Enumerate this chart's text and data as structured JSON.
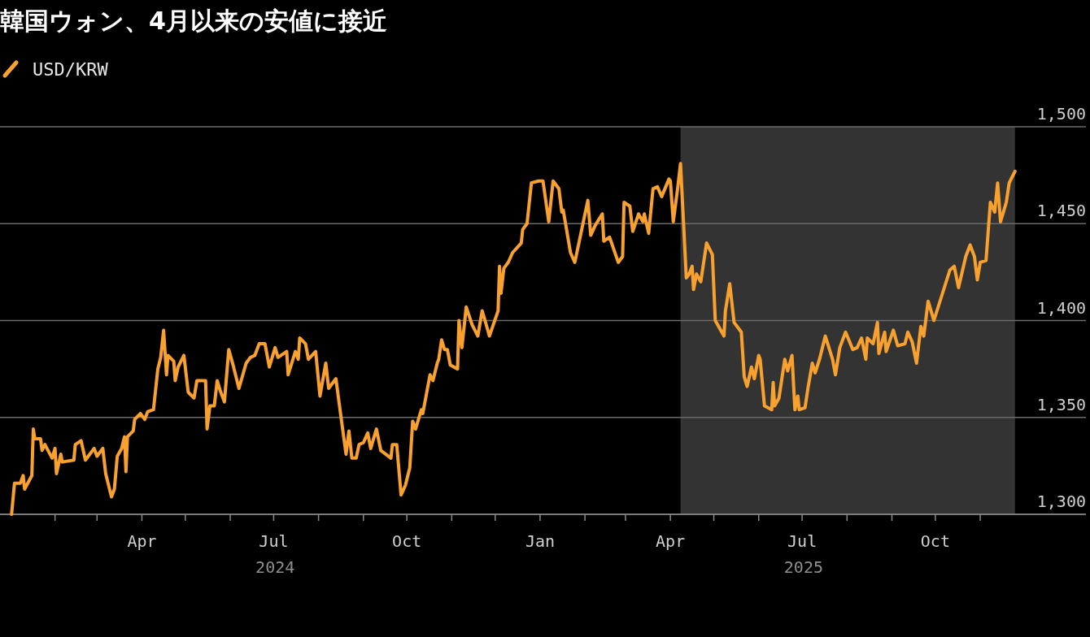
{
  "chart_data": {
    "type": "line",
    "title": "韓国ウォン、4月以来の安値に接近",
    "legend": "top left",
    "grid": "y",
    "line_style": "solid",
    "marker": "none",
    "xlim": [
      "2023-12-25",
      "2026-01-13"
    ],
    "xticks": [
      {
        "value": "2024-02-01",
        "label": null
      },
      {
        "value": "2024-03-01",
        "label": null
      },
      {
        "value": "2024-04-01",
        "label": "Apr"
      },
      {
        "value": "2024-05-01",
        "label": null
      },
      {
        "value": "2024-06-01",
        "label": null
      },
      {
        "value": "2024-07-01",
        "label": "Jul"
      },
      {
        "value": "2024-08-01",
        "label": null
      },
      {
        "value": "2024-09-01",
        "label": null
      },
      {
        "value": "2024-10-01",
        "label": "Oct"
      },
      {
        "value": "2024-11-01",
        "label": null
      },
      {
        "value": "2024-12-01",
        "label": null
      },
      {
        "value": "2025-01-01",
        "label": "Jan"
      },
      {
        "value": "2025-02-01",
        "label": null
      },
      {
        "value": "2025-03-01",
        "label": null
      },
      {
        "value": "2025-04-01",
        "label": "Apr"
      },
      {
        "value": "2025-05-01",
        "label": null
      },
      {
        "value": "2025-06-01",
        "label": null
      },
      {
        "value": "2025-07-01",
        "label": "Jul"
      },
      {
        "value": "2025-08-01",
        "label": null
      },
      {
        "value": "2025-09-01",
        "label": null
      },
      {
        "value": "2025-10-01",
        "label": "Oct"
      },
      {
        "value": "2025-11-01",
        "label": null
      }
    ],
    "ylim": [
      1300,
      1500
    ],
    "yticks": [
      {
        "value": 1300,
        "label": "1,300"
      },
      {
        "value": 1350,
        "label": "1,350"
      },
      {
        "value": 1400,
        "label": "1,400"
      },
      {
        "value": 1450,
        "label": "1,450"
      },
      {
        "value": 1500,
        "label": "1,500"
      }
    ],
    "bands": [
      {
        "axis": "x",
        "from": "2025-04-08",
        "to": "2025-11-25",
        "color": "#333333"
      }
    ],
    "annotations": [
      "2024",
      "2025"
    ],
    "series": [
      {
        "name": "USD/KRW",
        "color": "#f9a12f",
        "x": [
          "2024-01-02",
          "2024-01-04",
          "2024-01-08",
          "2024-01-10",
          "2024-01-11",
          "2024-01-16",
          "2024-01-17",
          "2024-01-18",
          "2024-01-22",
          "2024-01-23",
          "2024-01-25",
          "2024-01-30",
          "2024-02-01",
          "2024-02-02",
          "2024-02-05",
          "2024-02-06",
          "2024-02-14",
          "2024-02-15",
          "2024-02-19",
          "2024-02-22",
          "2024-02-28",
          "2024-03-01",
          "2024-03-05",
          "2024-03-07",
          "2024-03-11",
          "2024-03-13",
          "2024-03-15",
          "2024-03-18",
          "2024-03-20",
          "2024-03-21",
          "2024-03-22",
          "2024-03-26",
          "2024-03-27",
          "2024-03-31",
          "2024-04-03",
          "2024-04-05",
          "2024-04-09",
          "2024-04-12",
          "2024-04-14",
          "2024-04-16",
          "2024-04-18",
          "2024-04-19",
          "2024-04-23",
          "2024-04-24",
          "2024-04-26",
          "2024-04-30",
          "2024-05-03",
          "2024-05-07",
          "2024-05-09",
          "2024-05-12",
          "2024-05-15",
          "2024-05-16",
          "2024-05-18",
          "2024-05-21",
          "2024-05-23",
          "2024-05-25",
          "2024-05-28",
          "2024-05-31",
          "2024-06-03",
          "2024-06-07",
          "2024-06-12",
          "2024-06-15",
          "2024-06-18",
          "2024-06-21",
          "2024-06-25",
          "2024-06-28",
          "2024-07-02",
          "2024-07-04",
          "2024-07-10",
          "2024-07-11",
          "2024-07-16",
          "2024-07-18",
          "2024-07-19",
          "2024-07-23",
          "2024-07-25",
          "2024-07-30",
          "2024-08-02",
          "2024-08-06",
          "2024-08-08",
          "2024-08-13",
          "2024-08-16",
          "2024-08-20",
          "2024-08-22",
          "2024-08-24",
          "2024-08-27",
          "2024-08-29",
          "2024-09-01",
          "2024-09-04",
          "2024-09-06",
          "2024-09-10",
          "2024-09-13",
          "2024-09-20",
          "2024-09-21",
          "2024-09-24",
          "2024-09-27",
          "2024-09-30",
          "2024-10-03",
          "2024-10-05",
          "2024-10-07",
          "2024-10-11",
          "2024-10-12",
          "2024-10-15",
          "2024-10-17",
          "2024-10-19",
          "2024-10-22",
          "2024-10-23",
          "2024-10-25",
          "2024-10-27",
          "2024-10-29",
          "2024-10-31",
          "2024-11-05",
          "2024-11-06",
          "2024-11-08",
          "2024-11-11",
          "2024-11-15",
          "2024-11-19",
          "2024-11-22",
          "2024-11-24",
          "2024-11-27",
          "2024-12-03",
          "2024-12-04",
          "2024-12-05",
          "2024-12-07",
          "2024-12-10",
          "2024-12-13",
          "2024-12-19",
          "2024-12-20",
          "2024-12-23",
          "2024-12-26",
          "2024-12-31",
          "2025-01-03",
          "2025-01-07",
          "2025-01-10",
          "2025-01-14",
          "2025-01-16",
          "2025-01-17",
          "2025-01-22",
          "2025-01-25",
          "2025-02-03",
          "2025-02-05",
          "2025-02-08",
          "2025-02-13",
          "2025-02-14",
          "2025-02-18",
          "2025-02-24",
          "2025-02-27",
          "2025-02-28",
          "2025-03-04",
          "2025-03-06",
          "2025-03-10",
          "2025-03-13",
          "2025-03-14",
          "2025-03-17",
          "2025-03-20",
          "2025-03-23",
          "2025-03-26",
          "2025-03-31",
          "2025-04-01",
          "2025-04-03",
          "2025-04-06",
          "2025-04-08",
          "2025-04-12",
          "2025-04-14",
          "2025-04-16",
          "2025-04-17",
          "2025-04-19",
          "2025-04-22",
          "2025-04-26",
          "2025-04-30",
          "2025-05-02",
          "2025-05-08",
          "2025-05-09",
          "2025-05-12",
          "2025-05-15",
          "2025-05-20",
          "2025-05-22",
          "2025-05-24",
          "2025-05-27",
          "2025-05-29",
          "2025-06-01",
          "2025-06-02",
          "2025-06-05",
          "2025-06-10",
          "2025-06-11",
          "2025-06-12",
          "2025-06-15",
          "2025-06-19",
          "2025-06-21",
          "2025-06-24",
          "2025-06-26",
          "2025-06-28",
          "2025-06-29",
          "2025-07-03",
          "2025-07-05",
          "2025-07-08",
          "2025-07-10",
          "2025-07-13",
          "2025-07-17",
          "2025-07-22",
          "2025-07-24",
          "2025-07-27",
          "2025-07-31",
          "2025-08-05",
          "2025-08-08",
          "2025-08-11",
          "2025-08-14",
          "2025-08-15",
          "2025-08-19",
          "2025-08-22",
          "2025-08-23",
          "2025-08-27",
          "2025-08-28",
          "2025-09-02",
          "2025-09-05",
          "2025-09-10",
          "2025-09-12",
          "2025-09-15",
          "2025-09-18",
          "2025-09-21",
          "2025-09-23",
          "2025-09-26",
          "2025-09-30",
          "2025-10-11",
          "2025-10-14",
          "2025-10-17",
          "2025-10-22",
          "2025-10-25",
          "2025-10-28",
          "2025-10-30",
          "2025-11-01",
          "2025-11-05",
          "2025-11-06",
          "2025-11-08",
          "2025-11-11",
          "2025-11-13",
          "2025-11-15",
          "2025-11-19",
          "2025-11-21",
          "2025-11-25"
        ],
        "values": [
          1300,
          1316,
          1316,
          1320,
          1313,
          1320,
          1344,
          1339,
          1339,
          1333,
          1336,
          1329,
          1334,
          1321,
          1331,
          1327,
          1328,
          1336,
          1338,
          1328,
          1334,
          1330,
          1334,
          1321,
          1309,
          1313,
          1330,
          1334,
          1340,
          1322,
          1340,
          1343,
          1349,
          1352,
          1349,
          1353,
          1354,
          1375,
          1381,
          1395,
          1372,
          1382,
          1379,
          1369,
          1376,
          1382,
          1363,
          1360,
          1369,
          1369,
          1369,
          1344,
          1356,
          1356,
          1369,
          1364,
          1358,
          1385,
          1377,
          1365,
          1378,
          1381,
          1382,
          1388,
          1388,
          1376,
          1386,
          1381,
          1384,
          1372,
          1384,
          1380,
          1391,
          1388,
          1380,
          1384,
          1361,
          1378,
          1365,
          1370,
          1353,
          1331,
          1343,
          1329,
          1329,
          1336,
          1337,
          1342,
          1334,
          1344,
          1333,
          1329,
          1336,
          1336,
          1310,
          1315,
          1324,
          1348,
          1344,
          1354,
          1352,
          1364,
          1372,
          1369,
          1378,
          1380,
          1390,
          1385,
          1385,
          1377,
          1375,
          1400,
          1386,
          1407,
          1398,
          1392,
          1405,
          1400,
          1392,
          1405,
          1428,
          1414,
          1427,
          1430,
          1435,
          1440,
          1447,
          1450,
          1471,
          1472,
          1472,
          1451,
          1472,
          1468,
          1456,
          1457,
          1435,
          1430,
          1462,
          1444,
          1449,
          1455,
          1441,
          1443,
          1430,
          1433,
          1461,
          1459,
          1446,
          1455,
          1451,
          1455,
          1445,
          1468,
          1469,
          1464,
          1473,
          1472,
          1451,
          1468,
          1481,
          1422,
          1424,
          1428,
          1416,
          1424,
          1420,
          1440,
          1434,
          1400,
          1392,
          1405,
          1419,
          1399,
          1394,
          1371,
          1366,
          1376,
          1370,
          1382,
          1380,
          1356,
          1354,
          1368,
          1356,
          1360,
          1380,
          1374,
          1382,
          1354,
          1361,
          1354,
          1355,
          1365,
          1378,
          1373,
          1380,
          1392,
          1380,
          1372,
          1386,
          1394,
          1385,
          1386,
          1391,
          1380,
          1391,
          1388,
          1399,
          1383,
          1394,
          1384,
          1395,
          1387,
          1388,
          1394,
          1389,
          1378,
          1397,
          1392,
          1410,
          1400,
          1426,
          1428,
          1417,
          1433,
          1439,
          1433,
          1421,
          1430,
          1431,
          1441,
          1461,
          1456,
          1471,
          1451,
          1461,
          1471,
          1477
        ]
      }
    ]
  }
}
